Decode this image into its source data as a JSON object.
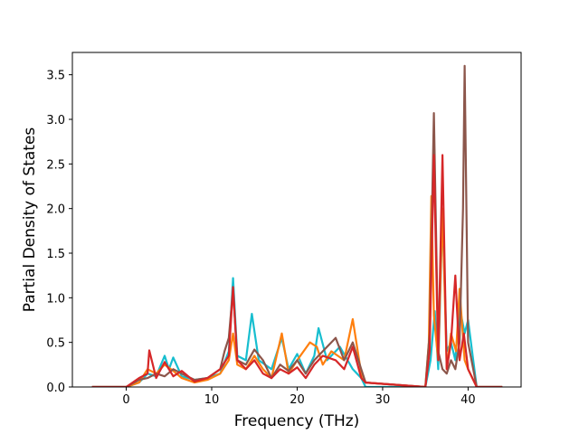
{
  "chart_data": {
    "type": "line",
    "title": "",
    "xlabel": "Frequency (THz)",
    "ylabel": "Partial Density of States",
    "xlim": [
      -6.3,
      46.2
    ],
    "ylim": [
      0,
      3.75
    ],
    "x_ticks": [
      0,
      10,
      20,
      30,
      40
    ],
    "x_tick_labels": [
      "0",
      "10",
      "20",
      "30",
      "40"
    ],
    "y_ticks": [
      0.0,
      0.5,
      1.0,
      1.5,
      2.0,
      2.5,
      3.0,
      3.5
    ],
    "y_tick_labels": [
      "0.0",
      "0.5",
      "1.0",
      "1.5",
      "2.0",
      "2.5",
      "3.0",
      "3.5"
    ],
    "grid": false,
    "legend": "none",
    "series": [
      {
        "color": "#17becf",
        "x": [
          -4,
          0,
          1.5,
          2.5,
          3.5,
          4.5,
          5,
          5.5,
          6.5,
          8,
          9.5,
          11,
          12,
          12.5,
          13,
          14,
          14.7,
          15.5,
          17,
          18.2,
          19,
          20,
          21,
          22,
          22.5,
          23.5,
          25,
          26.5,
          27.5,
          28,
          35,
          35.6,
          36.1,
          36.5,
          37,
          37.5,
          38,
          38.5,
          39,
          39.6,
          40,
          41,
          44
        ],
        "y": [
          0,
          0,
          0.05,
          0.15,
          0.12,
          0.35,
          0.2,
          0.33,
          0.12,
          0.08,
          0.1,
          0.15,
          0.4,
          1.22,
          0.35,
          0.3,
          0.82,
          0.3,
          0.2,
          0.55,
          0.2,
          0.37,
          0.15,
          0.35,
          0.66,
          0.3,
          0.45,
          0.2,
          0.1,
          0,
          0,
          0.3,
          0.85,
          0.2,
          1.95,
          0.4,
          0.5,
          0.3,
          0.9,
          0.6,
          0.75,
          0,
          0
        ]
      },
      {
        "color": "#ff7f0e",
        "x": [
          -4,
          0,
          1.5,
          2.5,
          3.5,
          4.5,
          5.5,
          6.5,
          8,
          9.5,
          11,
          12,
          12.5,
          13,
          14,
          15,
          16,
          17,
          18.2,
          19,
          20,
          21.5,
          22.3,
          23,
          24,
          25.5,
          26.5,
          27.5,
          28,
          35,
          35.4,
          35.7,
          36,
          36.5,
          37,
          37.5,
          38,
          38.6,
          39,
          39.6,
          40,
          41,
          44
        ],
        "y": [
          0,
          0,
          0.05,
          0.2,
          0.15,
          0.25,
          0.18,
          0.1,
          0.05,
          0.08,
          0.15,
          0.3,
          0.6,
          0.25,
          0.2,
          0.35,
          0.2,
          0.1,
          0.6,
          0.15,
          0.3,
          0.5,
          0.45,
          0.25,
          0.4,
          0.3,
          0.76,
          0.15,
          0.05,
          0,
          0.5,
          2.14,
          0.8,
          0.3,
          2.0,
          0.2,
          0.6,
          0.4,
          1.1,
          0.3,
          0.2,
          0,
          0
        ]
      },
      {
        "color": "#8c564b",
        "x": [
          -4,
          0,
          1.5,
          2.5,
          3.5,
          4.5,
          5.5,
          6.5,
          8,
          9.5,
          11,
          11.5,
          12,
          12.5,
          13,
          14,
          15,
          16,
          17,
          18,
          19,
          20,
          21,
          22,
          23,
          24.5,
          25.5,
          26.5,
          27.5,
          28,
          35,
          35.5,
          36,
          36.5,
          37,
          37.5,
          38,
          38.5,
          39,
          39.4,
          39.6,
          40,
          41,
          44
        ],
        "y": [
          0,
          0,
          0.08,
          0.1,
          0.15,
          0.12,
          0.2,
          0.15,
          0.08,
          0.1,
          0.2,
          0.4,
          0.55,
          1.1,
          0.3,
          0.25,
          0.42,
          0.3,
          0.1,
          0.25,
          0.18,
          0.3,
          0.15,
          0.3,
          0.4,
          0.55,
          0.3,
          0.5,
          0.2,
          0.05,
          0,
          0.6,
          3.07,
          0.4,
          0.2,
          0.15,
          0.3,
          0.2,
          0.5,
          2.0,
          3.6,
          0.5,
          0,
          0
        ]
      },
      {
        "color": "#d62728",
        "x": [
          -4,
          0,
          1.5,
          2.5,
          2.7,
          3.5,
          4.5,
          5.5,
          6.5,
          8,
          9.5,
          11,
          12,
          12.5,
          13,
          14,
          15,
          16,
          17,
          18,
          19,
          20,
          21,
          22,
          23,
          24.5,
          25.5,
          26.5,
          27.5,
          28,
          35,
          35.5,
          36,
          36.5,
          37,
          37.5,
          38,
          38.5,
          39,
          39.5,
          40,
          41,
          44
        ],
        "y": [
          0,
          0,
          0.1,
          0.15,
          0.41,
          0.1,
          0.28,
          0.12,
          0.18,
          0.06,
          0.1,
          0.2,
          0.35,
          1.12,
          0.3,
          0.2,
          0.3,
          0.15,
          0.1,
          0.2,
          0.15,
          0.22,
          0.1,
          0.25,
          0.35,
          0.3,
          0.2,
          0.45,
          0.1,
          0.05,
          0,
          0.4,
          2.6,
          0.3,
          2.6,
          0.2,
          0.5,
          1.25,
          0.3,
          0.6,
          0.2,
          0,
          0
        ]
      }
    ]
  }
}
